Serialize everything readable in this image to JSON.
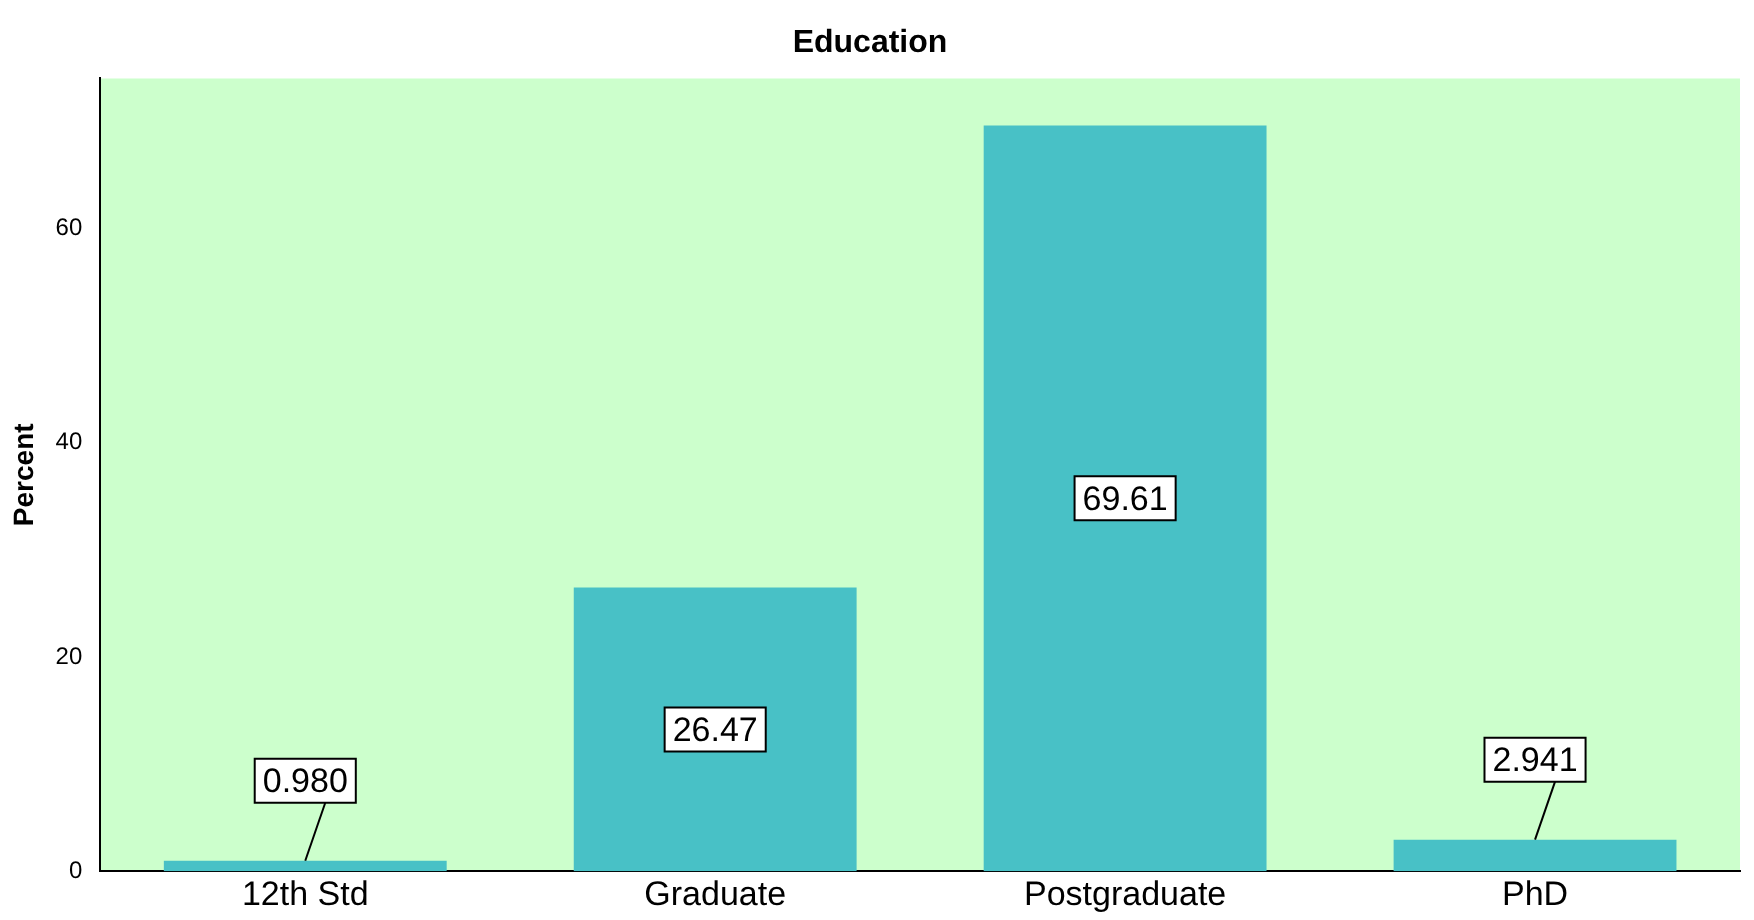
{
  "chart_data": {
    "type": "bar",
    "title": "Education",
    "ylabel": "Percent",
    "categories": [
      "12th Std",
      "Graduate",
      "Postgraduate",
      "PhD"
    ],
    "values": [
      0.98,
      26.47,
      69.61,
      2.941
    ],
    "value_labels": [
      "0.980",
      "26.47",
      "69.61",
      "2.941"
    ],
    "color": "#48c1c6",
    "ylim": [
      0,
      74
    ],
    "yticks": [
      0,
      20,
      40,
      60
    ],
    "grid": false,
    "legend": false
  }
}
